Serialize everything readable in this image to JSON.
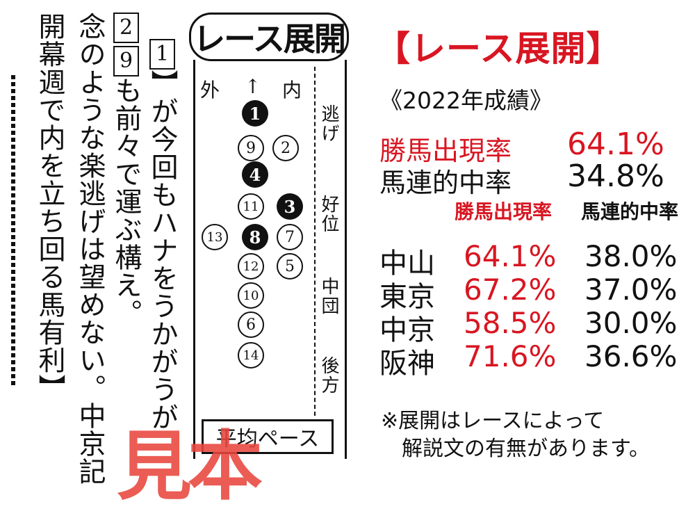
{
  "article": {
    "col1": "】が今回もハナをうかがうが",
    "col1_mark": "1",
    "col2a_mark": "2",
    "col2b_mark": "9",
    "col2": "念のような楽逃げは望めない。中京記",
    "col2_top": "も前々で運ぶ構え。",
    "col3": "開幕週で内を立ち回る馬有利】"
  },
  "race_dev": {
    "logo": "レース展開",
    "outer": "外",
    "arrow": "↑",
    "inner": "内",
    "positions": [
      "逃げ",
      "好位",
      "中団",
      "後方"
    ],
    "horses": [
      {
        "num": "1",
        "filled": true
      },
      {
        "num": "9",
        "filled": false
      },
      {
        "num": "2",
        "filled": false
      },
      {
        "num": "4",
        "filled": true
      },
      {
        "num": "11",
        "filled": false
      },
      {
        "num": "3",
        "filled": true
      },
      {
        "num": "13",
        "filled": false
      },
      {
        "num": "8",
        "filled": true
      },
      {
        "num": "7",
        "filled": false
      },
      {
        "num": "12",
        "filled": false
      },
      {
        "num": "5",
        "filled": false
      },
      {
        "num": "10",
        "filled": false
      },
      {
        "num": "6",
        "filled": false
      },
      {
        "num": "14",
        "filled": false
      }
    ],
    "pace": "平均ペース",
    "watermark": "見本"
  },
  "stats": {
    "title": "【レース展開】",
    "season": "《2022年成績》",
    "win_rate_label": "勝馬出現率",
    "win_rate_value": "64.1%",
    "quinella_label": "馬連的中率",
    "quinella_value": "34.8%",
    "col_header_win": "勝馬出現率",
    "col_header_quinella": "馬連的中率",
    "tracks": [
      {
        "name": "中山",
        "win": "64.1%",
        "quinella": "38.0%"
      },
      {
        "name": "東京",
        "win": "67.2%",
        "quinella": "37.0%"
      },
      {
        "name": "中京",
        "win": "58.5%",
        "quinella": "30.0%"
      },
      {
        "name": "阪神",
        "win": "71.6%",
        "quinella": "36.6%"
      }
    ],
    "note_line1": "※展開はレースによって",
    "note_line2": "解説文の有無があります。"
  },
  "colors": {
    "accent_red": "#d81622",
    "watermark": "#e8463c"
  }
}
